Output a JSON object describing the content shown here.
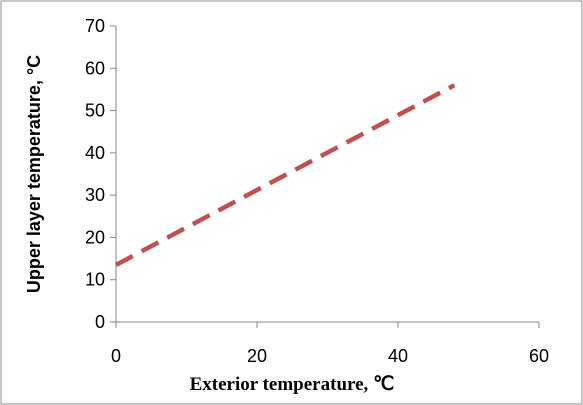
{
  "chart_data": {
    "type": "line",
    "title": "",
    "xlabel": "Exterior temperature, ℃",
    "ylabel": "Upper layer temperature, °C",
    "xlim": [
      0,
      60
    ],
    "ylim": [
      0,
      70
    ],
    "x_ticks": [
      "0",
      "20",
      "40",
      "60"
    ],
    "y_ticks": [
      "0",
      "10",
      "20",
      "30",
      "40",
      "50",
      "60",
      "70"
    ],
    "grid": false,
    "legend": "none",
    "series": [
      {
        "color": "#c0504d",
        "line_style": "dashed",
        "x": [
          0,
          48
        ],
        "y": [
          13.5,
          56
        ]
      }
    ]
  }
}
